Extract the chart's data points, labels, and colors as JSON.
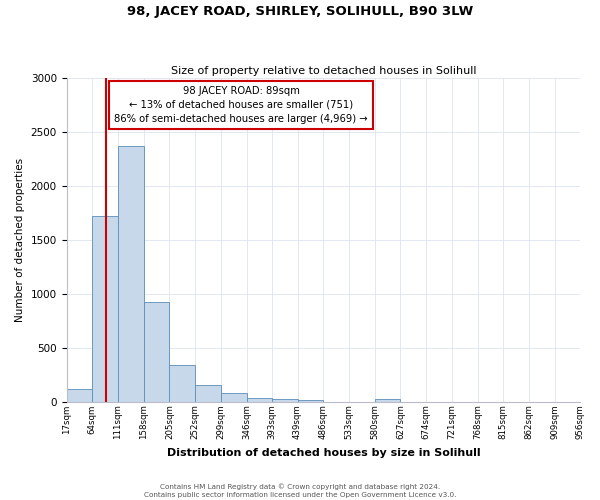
{
  "title": "98, JACEY ROAD, SHIRLEY, SOLIHULL, B90 3LW",
  "subtitle": "Size of property relative to detached houses in Solihull",
  "xlabel": "Distribution of detached houses by size in Solihull",
  "ylabel": "Number of detached properties",
  "bar_left_edges": [
    17,
    64,
    111,
    158,
    205,
    252,
    299,
    346,
    393,
    439,
    486,
    533,
    580,
    627,
    674,
    721,
    768,
    815,
    862,
    909
  ],
  "bar_heights": [
    120,
    1720,
    2370,
    920,
    340,
    150,
    80,
    30,
    20,
    10,
    0,
    0,
    20,
    0,
    0,
    0,
    0,
    0,
    0,
    0
  ],
  "bar_color": "#c8d8eb",
  "bar_edgecolor": "#5b8db8",
  "property_line_x": 89,
  "annotation_title": "98 JACEY ROAD: 89sqm",
  "annotation_line1": "← 13% of detached houses are smaller (751)",
  "annotation_line2": "86% of semi-detached houses are larger (4,969) →",
  "annotation_box_color": "#ffffff",
  "annotation_box_edgecolor": "#cc0000",
  "vline_color": "#cc0000",
  "ylim": [
    0,
    3000
  ],
  "yticks": [
    0,
    500,
    1000,
    1500,
    2000,
    2500,
    3000
  ],
  "xtick_edges": [
    17,
    64,
    111,
    158,
    205,
    252,
    299,
    346,
    393,
    439,
    486,
    533,
    580,
    627,
    674,
    721,
    768,
    815,
    862,
    909,
    956
  ],
  "xtick_labels": [
    "17sqm",
    "64sqm",
    "111sqm",
    "158sqm",
    "205sqm",
    "252sqm",
    "299sqm",
    "346sqm",
    "393sqm",
    "439sqm",
    "486sqm",
    "533sqm",
    "580sqm",
    "627sqm",
    "674sqm",
    "721sqm",
    "768sqm",
    "815sqm",
    "862sqm",
    "909sqm",
    "956sqm"
  ],
  "footer1": "Contains HM Land Registry data © Crown copyright and database right 2024.",
  "footer2": "Contains public sector information licensed under the Open Government Licence v3.0.",
  "bg_color": "#ffffff",
  "grid_color": "#dde4ef"
}
